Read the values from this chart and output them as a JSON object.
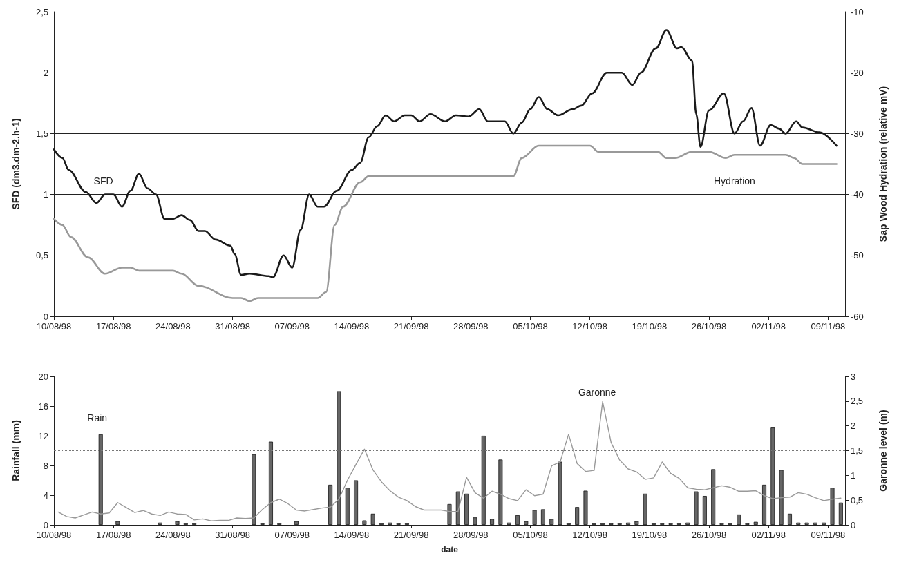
{
  "chart_data": [
    {
      "type": "line",
      "ylabel": "SFD (dm3.dm-2.h-1)",
      "y2label": "Sap Wood Hydration (relative mV)",
      "xlim": [
        "1998-08-10",
        "1998-11-11"
      ],
      "xticks": [
        {
          "value": "1998-08-10",
          "label": "10/08/98"
        },
        {
          "value": "1998-08-17",
          "label": "17/08/98"
        },
        {
          "value": "1998-08-24",
          "label": "24/08/98"
        },
        {
          "value": "1998-08-31",
          "label": "31/08/98"
        },
        {
          "value": "1998-09-07",
          "label": "07/09/98"
        },
        {
          "value": "1998-09-14",
          "label": "14/09/98"
        },
        {
          "value": "1998-09-21",
          "label": "21/09/98"
        },
        {
          "value": "1998-09-28",
          "label": "28/09/98"
        },
        {
          "value": "1998-10-05",
          "label": "05/10/98"
        },
        {
          "value": "1998-10-12",
          "label": "12/10/98"
        },
        {
          "value": "1998-10-19",
          "label": "19/10/98"
        },
        {
          "value": "1998-10-26",
          "label": "26/10/98"
        },
        {
          "value": "1998-11-02",
          "label": "02/11/98"
        },
        {
          "value": "1998-11-09",
          "label": "09/11/98"
        }
      ],
      "ylim": [
        0,
        2.5
      ],
      "yticks": [
        0,
        {
          "value": 0.5,
          "label": "0,5"
        },
        1,
        {
          "value": 1.5,
          "label": "1,5"
        },
        2,
        {
          "value": 2.5,
          "label": "2,5"
        }
      ],
      "y2lim": [
        -60,
        -10
      ],
      "y2ticks": [
        -60,
        -50,
        -40,
        -30,
        -20,
        -10
      ],
      "grid": "y",
      "marker": "none",
      "series": [
        {
          "name": "SFD",
          "color": "#1a1a1a",
          "x": [
            "1998-08-10",
            "1998-08-11",
            "1998-08-11T18:00",
            "1998-08-13T18:00",
            "1998-08-15",
            "1998-08-16",
            "1998-08-17",
            "1998-08-18",
            "1998-08-19",
            "1998-08-20",
            "1998-08-21",
            "1998-08-22",
            "1998-08-23",
            "1998-08-24",
            "1998-08-25",
            "1998-08-26",
            "1998-08-27",
            "1998-08-27T18:00",
            "1998-08-29",
            "1998-08-30T18:00",
            "1998-08-31T06:00",
            "1998-09-01",
            "1998-09-02",
            "1998-09-04T06:00",
            "1998-09-04T18:00",
            "1998-09-06",
            "1998-09-07",
            "1998-09-08",
            "1998-09-09",
            "1998-09-10",
            "1998-09-10T18:00",
            "1998-09-12T06:00",
            "1998-09-14",
            "1998-09-15",
            "1998-09-16",
            "1998-09-17",
            "1998-09-18",
            "1998-09-19",
            "1998-09-20T06:00",
            "1998-09-21",
            "1998-09-22",
            "1998-09-23T06:00",
            "1998-09-25",
            "1998-09-26T06:00",
            "1998-09-27T18:00",
            "1998-09-29",
            "1998-09-30",
            "1998-10-02",
            "1998-10-03",
            "1998-10-04",
            "1998-10-05",
            "1998-10-06",
            "1998-10-07",
            "1998-10-08T06:00",
            "1998-10-10",
            "1998-10-11",
            "1998-10-12T06:00",
            "1998-10-14",
            "1998-10-15T18:00",
            "1998-10-17",
            "1998-10-18",
            "1998-10-19T18:00",
            "1998-10-21",
            "1998-10-22T06:00",
            "1998-10-22T18:00",
            "1998-10-24",
            "1998-10-24T12:00",
            "1998-10-25",
            "1998-10-26",
            "1998-10-27T18:00",
            "1998-10-29",
            "1998-10-30",
            "1998-10-31",
            "1998-11-01",
            "1998-11-02T06:00",
            "1998-11-03T06:00",
            "1998-11-04",
            "1998-11-05T06:00",
            "1998-11-06",
            "1998-11-08",
            "1998-11-10"
          ],
          "values": [
            1.37,
            1.3,
            1.2,
            1.02,
            0.93,
            1.0,
            1.0,
            0.9,
            1.03,
            1.17,
            1.05,
            1.0,
            0.8,
            0.8,
            0.83,
            0.79,
            0.7,
            0.7,
            0.63,
            0.58,
            0.51,
            0.34,
            0.35,
            0.33,
            0.32,
            0.5,
            0.4,
            0.71,
            1.0,
            0.9,
            0.9,
            1.03,
            1.2,
            1.26,
            1.47,
            1.56,
            1.65,
            1.6,
            1.65,
            1.65,
            1.6,
            1.66,
            1.6,
            1.65,
            1.64,
            1.7,
            1.6,
            1.6,
            1.5,
            1.59,
            1.7,
            1.8,
            1.7,
            1.65,
            1.7,
            1.73,
            1.83,
            2.0,
            2.0,
            1.9,
            2.0,
            2.2,
            2.35,
            2.2,
            2.21,
            2.1,
            1.66,
            1.39,
            1.69,
            1.83,
            1.5,
            1.6,
            1.71,
            1.4,
            1.57,
            1.54,
            1.5,
            1.6,
            1.55,
            1.51,
            1.4
          ]
        },
        {
          "name": "Hydration",
          "color": "#999999",
          "axis": "y2",
          "x": [
            "1998-08-10",
            "1998-08-11",
            "1998-08-12",
            "1998-08-14",
            "1998-08-16",
            "1998-08-18",
            "1998-08-19",
            "1998-08-20",
            "1998-08-24",
            "1998-08-25",
            "1998-08-27",
            "1998-08-31",
            "1998-09-01",
            "1998-09-02",
            "1998-09-03",
            "1998-09-10",
            "1998-09-11",
            "1998-09-12",
            "1998-09-13",
            "1998-09-15",
            "1998-09-16",
            "1998-10-03",
            "1998-10-04",
            "1998-10-06",
            "1998-10-12",
            "1998-10-13",
            "1998-10-20",
            "1998-10-21",
            "1998-10-22",
            "1998-10-24",
            "1998-10-26",
            "1998-10-28",
            "1998-10-29",
            "1998-11-04",
            "1998-11-05",
            "1998-11-06",
            "1998-11-10"
          ],
          "values": [
            -44,
            -45,
            -47,
            -50.3,
            -53,
            -52,
            -52,
            -52.5,
            -52.5,
            -53,
            -55,
            -57,
            -57,
            -57.5,
            -57,
            -57,
            -56,
            -45,
            -42,
            -38,
            -37,
            -37,
            -34,
            -32,
            -32,
            -33,
            -33,
            -34,
            -34,
            -33,
            -33,
            -34,
            -33.5,
            -33.5,
            -34,
            -35,
            -35
          ]
        }
      ]
    },
    {
      "type": "bar",
      "xlabel": "date",
      "ylabel": "Rainfall (mm)",
      "y2label": "Garonne level (m)",
      "xlim": [
        "1998-08-10",
        "1998-11-11"
      ],
      "xticks": [
        {
          "value": "1998-08-10",
          "label": "10/08/98"
        },
        {
          "value": "1998-08-17",
          "label": "17/08/98"
        },
        {
          "value": "1998-08-24",
          "label": "24/08/98"
        },
        {
          "value": "1998-08-31",
          "label": "31/08/98"
        },
        {
          "value": "1998-09-07",
          "label": "07/09/98"
        },
        {
          "value": "1998-09-14",
          "label": "14/09/98"
        },
        {
          "value": "1998-09-21",
          "label": "21/09/98"
        },
        {
          "value": "1998-09-28",
          "label": "28/09/98"
        },
        {
          "value": "1998-10-05",
          "label": "05/10/98"
        },
        {
          "value": "1998-10-12",
          "label": "12/10/98"
        },
        {
          "value": "1998-10-19",
          "label": "19/10/98"
        },
        {
          "value": "1998-10-26",
          "label": "26/10/98"
        },
        {
          "value": "1998-11-02",
          "label": "02/11/98"
        },
        {
          "value": "1998-11-09",
          "label": "09/11/98"
        }
      ],
      "x": [
        "1998-08-10T12:00",
        "1998-08-11T12:00",
        "1998-08-12T12:00",
        "1998-08-13T12:00",
        "1998-08-14T12:00",
        "1998-08-15T12:00",
        "1998-08-16T12:00",
        "1998-08-17T12:00",
        "1998-08-18T12:00",
        "1998-08-19T12:00",
        "1998-08-20T12:00",
        "1998-08-21T12:00",
        "1998-08-22T12:00",
        "1998-08-23T12:00",
        "1998-08-24T12:00",
        "1998-08-25T12:00",
        "1998-08-26T12:00",
        "1998-08-27T12:00",
        "1998-08-28T12:00",
        "1998-08-29T12:00",
        "1998-08-30T12:00",
        "1998-08-31T12:00",
        "1998-09-01T12:00",
        "1998-09-02T12:00",
        "1998-09-03T12:00",
        "1998-09-04T12:00",
        "1998-09-05T12:00",
        "1998-09-06T12:00",
        "1998-09-07T12:00",
        "1998-09-08T12:00",
        "1998-09-09T12:00",
        "1998-09-10T12:00",
        "1998-09-11T12:00",
        "1998-09-12T12:00",
        "1998-09-13T12:00",
        "1998-09-14T12:00",
        "1998-09-15T12:00",
        "1998-09-16T12:00",
        "1998-09-17T12:00",
        "1998-09-18T12:00",
        "1998-09-19T12:00",
        "1998-09-20T12:00",
        "1998-09-21T12:00",
        "1998-09-22T12:00",
        "1998-09-23T12:00",
        "1998-09-24T12:00",
        "1998-09-25T12:00",
        "1998-09-26T12:00",
        "1998-09-27T12:00",
        "1998-09-28T12:00",
        "1998-09-29T12:00",
        "1998-09-30T12:00",
        "1998-10-01T12:00",
        "1998-10-02T12:00",
        "1998-10-03T12:00",
        "1998-10-04T12:00",
        "1998-10-05T12:00",
        "1998-10-06T12:00",
        "1998-10-07T12:00",
        "1998-10-08T12:00",
        "1998-10-09T12:00",
        "1998-10-10T12:00",
        "1998-10-11T12:00",
        "1998-10-12T12:00",
        "1998-10-13T12:00",
        "1998-10-14T12:00",
        "1998-10-15T12:00",
        "1998-10-16T12:00",
        "1998-10-17T12:00",
        "1998-10-18T12:00",
        "1998-10-19T12:00",
        "1998-10-20T12:00",
        "1998-10-21T12:00",
        "1998-10-22T12:00",
        "1998-10-23T12:00",
        "1998-10-24T12:00",
        "1998-10-25T12:00",
        "1998-10-26T12:00",
        "1998-10-27T12:00",
        "1998-10-28T12:00",
        "1998-10-29T12:00",
        "1998-10-30T12:00",
        "1998-10-31T12:00",
        "1998-11-01T12:00",
        "1998-11-02T12:00",
        "1998-11-03T12:00",
        "1998-11-04T12:00",
        "1998-11-05T12:00",
        "1998-11-06T12:00",
        "1998-11-07T12:00",
        "1998-11-08T12:00",
        "1998-11-09T12:00",
        "1998-11-10T12:00"
      ],
      "ylim": [
        0,
        20
      ],
      "yticks": [
        0,
        4,
        8,
        12,
        16,
        20
      ],
      "y2lim": [
        0,
        3
      ],
      "y2ticks": [
        0,
        {
          "value": 0.5,
          "label": "0,5"
        },
        1,
        {
          "value": 1.5,
          "label": "1,5"
        },
        2,
        {
          "value": 2.5,
          "label": "2,5"
        },
        3
      ],
      "marker": "none",
      "ref_lines": [
        {
          "axis": "y2",
          "value": 1.5,
          "color": "#777777",
          "line_style": "dotted"
        }
      ],
      "series": [
        {
          "name": "Rain",
          "type": "bar",
          "color": "#666666",
          "values": [
            null,
            null,
            null,
            null,
            null,
            12.2,
            null,
            0.5,
            null,
            null,
            null,
            null,
            0.3,
            null,
            0.5,
            0.2,
            0.2,
            null,
            null,
            null,
            null,
            null,
            null,
            9.5,
            0.2,
            11.2,
            0.2,
            null,
            0.5,
            null,
            null,
            null,
            5.4,
            18,
            5,
            6,
            0.6,
            1.5,
            0.2,
            0.3,
            0.2,
            0.2,
            null,
            null,
            null,
            null,
            2.8,
            4.5,
            4.2,
            1.0,
            12,
            0.8,
            8.8,
            0.3,
            1.3,
            0.5,
            2.0,
            2.1,
            0.8,
            8.5,
            0.2,
            2.4,
            4.6,
            0.2,
            0.2,
            0.2,
            0.2,
            0.3,
            0.5,
            4.2,
            0.2,
            0.2,
            0.2,
            0.2,
            0.3,
            4.5,
            3.9,
            7.5,
            0.2,
            0.2,
            1.4,
            0.2,
            0.4,
            5.4,
            13.1,
            7.4,
            1.5,
            0.3,
            0.3,
            0.3,
            0.3,
            5.0,
            3.0
          ]
        },
        {
          "name": "Garonne",
          "type": "line",
          "axis": "y2",
          "color": "#999999",
          "values": [
            0.26,
            0.17,
            0.14,
            0.2,
            0.26,
            0.22,
            0.24,
            0.45,
            0.35,
            0.25,
            0.29,
            0.22,
            0.19,
            0.26,
            0.22,
            0.21,
            0.1,
            0.12,
            0.08,
            0.09,
            0.09,
            0.14,
            0.13,
            0.14,
            0.31,
            0.45,
            0.52,
            0.43,
            0.3,
            0.28,
            0.31,
            0.34,
            0.36,
            0.52,
            0.9,
            1.22,
            1.53,
            1.11,
            0.87,
            0.69,
            0.56,
            0.49,
            0.37,
            0.3,
            0.3,
            0.3,
            0.27,
            0.27,
            0.96,
            0.65,
            0.54,
            0.68,
            0.62,
            0.53,
            0.49,
            0.71,
            0.59,
            0.62,
            1.19,
            1.27,
            1.83,
            1.24,
            1.08,
            1.1,
            2.49,
            1.66,
            1.31,
            1.13,
            1.07,
            0.92,
            0.95,
            1.27,
            1.04,
            0.94,
            0.75,
            0.72,
            0.71,
            0.75,
            0.79,
            0.76,
            0.68,
            0.68,
            0.69,
            0.59,
            0.53,
            0.55,
            0.56,
            0.65,
            0.62,
            0.55,
            0.49,
            0.52,
            0.54
          ]
        }
      ]
    }
  ]
}
